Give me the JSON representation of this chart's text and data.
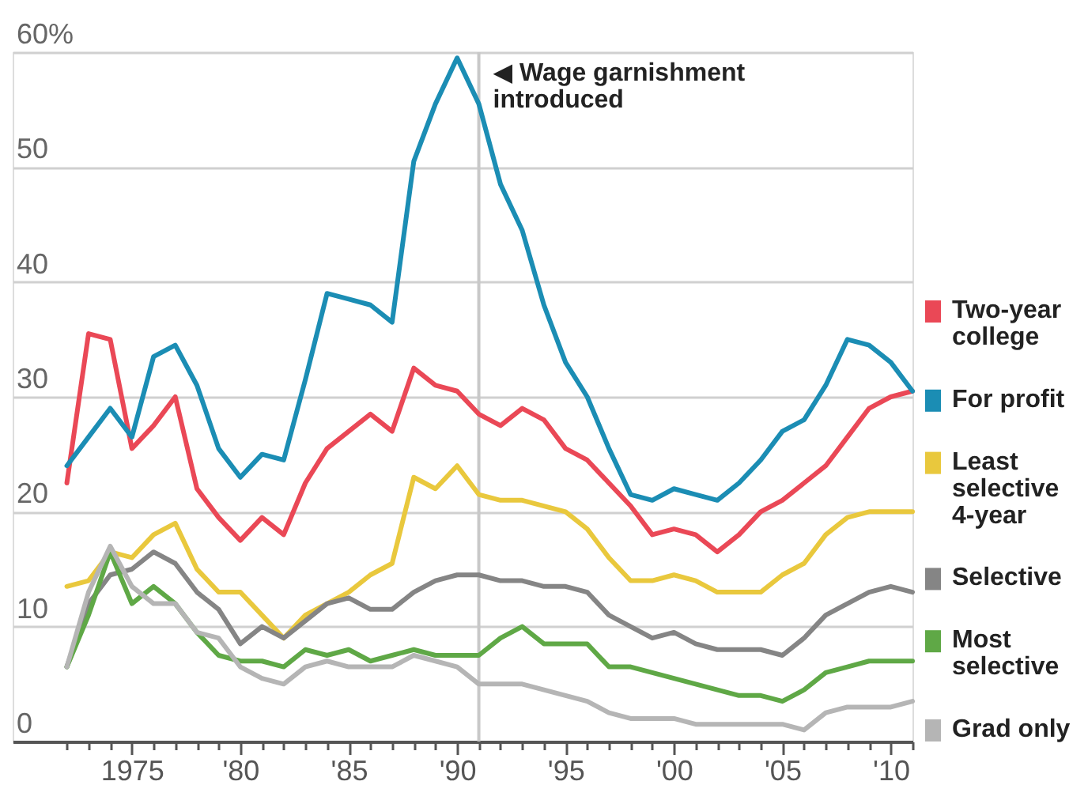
{
  "chart_data": {
    "type": "line",
    "x": [
      1972,
      1973,
      1974,
      1975,
      1976,
      1977,
      1978,
      1979,
      1980,
      1981,
      1982,
      1983,
      1984,
      1985,
      1986,
      1987,
      1988,
      1989,
      1990,
      1991,
      1992,
      1993,
      1994,
      1995,
      1996,
      1997,
      1998,
      1999,
      2000,
      2001,
      2002,
      2003,
      2004,
      2005,
      2006,
      2007,
      2008,
      2009,
      2010,
      2011
    ],
    "xlim": [
      1969.5,
      2011
    ],
    "xticks": [
      {
        "value": 1972,
        "label": null
      },
      {
        "value": 1973,
        "label": null
      },
      {
        "value": 1974,
        "label": null
      },
      1975,
      {
        "value": 1976,
        "label": null
      },
      {
        "value": 1977,
        "label": null
      },
      {
        "value": 1978,
        "label": null
      },
      {
        "value": 1979,
        "label": null
      },
      {
        "value": 1980,
        "label": "'80"
      },
      {
        "value": 1981,
        "label": null
      },
      {
        "value": 1982,
        "label": null
      },
      {
        "value": 1983,
        "label": null
      },
      {
        "value": 1984,
        "label": null
      },
      {
        "value": 1985,
        "label": "'85"
      },
      {
        "value": 1986,
        "label": null
      },
      {
        "value": 1987,
        "label": null
      },
      {
        "value": 1988,
        "label": null
      },
      {
        "value": 1989,
        "label": null
      },
      {
        "value": 1990,
        "label": "'90"
      },
      {
        "value": 1991,
        "label": null
      },
      {
        "value": 1992,
        "label": null
      },
      {
        "value": 1993,
        "label": null
      },
      {
        "value": 1994,
        "label": null
      },
      {
        "value": 1995,
        "label": "'95"
      },
      {
        "value": 1996,
        "label": null
      },
      {
        "value": 1997,
        "label": null
      },
      {
        "value": 1998,
        "label": null
      },
      {
        "value": 1999,
        "label": null
      },
      {
        "value": 2000,
        "label": "'00"
      },
      {
        "value": 2001,
        "label": null
      },
      {
        "value": 2002,
        "label": null
      },
      {
        "value": 2003,
        "label": null
      },
      {
        "value": 2004,
        "label": null
      },
      {
        "value": 2005,
        "label": "'05"
      },
      {
        "value": 2006,
        "label": null
      },
      {
        "value": 2007,
        "label": null
      },
      {
        "value": 2008,
        "label": null
      },
      {
        "value": 2009,
        "label": null
      },
      {
        "value": 2010,
        "label": "'10"
      },
      {
        "value": 2011,
        "label": null
      }
    ],
    "ylim": [
      0,
      60
    ],
    "yticks": [
      0,
      10,
      20,
      30,
      40,
      50,
      {
        "value": 60,
        "label": "60%"
      }
    ],
    "grid": "y",
    "legend": "right",
    "series": [
      {
        "name": "Two-year college",
        "color": "#ea4856",
        "values": [
          22.5,
          35.5,
          35,
          25.5,
          27.5,
          30,
          22,
          19.5,
          17.5,
          19.5,
          18,
          22.5,
          25.5,
          27,
          28.5,
          27,
          32.5,
          31,
          30.5,
          28.5,
          27.5,
          29,
          28,
          25.5,
          24.5,
          22.5,
          20.5,
          18,
          18.5,
          18,
          16.5,
          18,
          20,
          21,
          22.5,
          24,
          26.5,
          29,
          30,
          30.5
        ]
      },
      {
        "name": "For profit",
        "color": "#1b8db4",
        "values": [
          24,
          26.5,
          29,
          26.5,
          33.5,
          34.5,
          31,
          25.5,
          23,
          25,
          24.5,
          31.5,
          39,
          38.5,
          38,
          36.5,
          50.5,
          55.5,
          59.5,
          55.5,
          48.5,
          44.5,
          38,
          33,
          30,
          25.5,
          21.5,
          21,
          22,
          21.5,
          21,
          22.5,
          24.5,
          27,
          28,
          31,
          35,
          34.5,
          33,
          30.5
        ]
      },
      {
        "name": "Least selective 4-year",
        "color": "#e9c83d",
        "values": [
          13.5,
          14,
          16.5,
          16,
          18,
          19,
          15,
          13,
          13,
          11,
          9,
          11,
          12,
          13,
          14.5,
          15.5,
          23,
          22,
          24,
          21.5,
          21,
          21,
          20.5,
          20,
          18.5,
          16,
          14,
          14,
          14.5,
          14,
          13,
          13,
          13,
          14.5,
          15.5,
          18,
          19.5,
          20,
          20,
          20
        ]
      },
      {
        "name": "Selective",
        "color": "#858585",
        "values": [
          6.5,
          12,
          14.5,
          15,
          16.5,
          15.5,
          13,
          11.5,
          8.5,
          10,
          9,
          10.5,
          12,
          12.5,
          11.5,
          11.5,
          13,
          14,
          14.5,
          14.5,
          14,
          14,
          13.5,
          13.5,
          13,
          11,
          10,
          9,
          9.5,
          8.5,
          8,
          8,
          8,
          7.5,
          9,
          11,
          12,
          13,
          13.5,
          13
        ]
      },
      {
        "name": "Most selective",
        "color": "#5fa846",
        "values": [
          6.5,
          11,
          16.5,
          12,
          13.5,
          12,
          9.5,
          7.5,
          7,
          7,
          6.5,
          8,
          7.5,
          8,
          7,
          7.5,
          8,
          7.5,
          7.5,
          7.5,
          9,
          10,
          8.5,
          8.5,
          8.5,
          6.5,
          6.5,
          6,
          5.5,
          5,
          4.5,
          4,
          4,
          3.5,
          4.5,
          6,
          6.5,
          7,
          7,
          7
        ]
      },
      {
        "name": "Grad only",
        "color": "#b5b5b5",
        "values": [
          6.5,
          13,
          17,
          13.5,
          12,
          12,
          9.5,
          9,
          6.5,
          5.5,
          5,
          6.5,
          7,
          6.5,
          6.5,
          6.5,
          7.5,
          7,
          6.5,
          5,
          5,
          5,
          4.5,
          4,
          3.5,
          2.5,
          2,
          2,
          2,
          1.5,
          1.5,
          1.5,
          1.5,
          1.5,
          1,
          2.5,
          3,
          3,
          3,
          3.5
        ]
      }
    ],
    "ref_lines": [
      {
        "axis": "x",
        "value": 1991,
        "label": "◀ Wage garnishment introduced",
        "color": "#c8c8c8"
      }
    ]
  }
}
